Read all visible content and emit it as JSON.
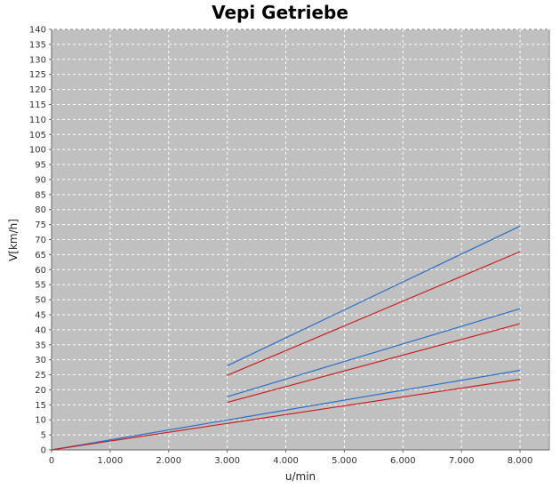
{
  "chart_data": {
    "type": "line",
    "title": "Vepi Getriebe",
    "xlabel": "u/min",
    "ylabel": "V[km/h]",
    "xlim": [
      0,
      8500
    ],
    "ylim": [
      0,
      140
    ],
    "x_ticks": [
      0,
      1000,
      2000,
      3000,
      4000,
      5000,
      6000,
      7000,
      8000
    ],
    "x_tick_labels": [
      "0",
      "1.000",
      "2.000",
      "3.000",
      "4.000",
      "5.000",
      "6.000",
      "7.000",
      "8.000"
    ],
    "y_ticks": [
      0,
      5,
      10,
      15,
      20,
      25,
      30,
      35,
      40,
      45,
      50,
      55,
      60,
      65,
      70,
      75,
      80,
      85,
      90,
      95,
      100,
      105,
      110,
      115,
      120,
      125,
      130,
      135,
      140
    ],
    "grid": true,
    "background": "#c0c0c0",
    "series": [
      {
        "color": "#2a6fc9",
        "points": [
          [
            0,
            0
          ],
          [
            8000,
            26.5
          ]
        ]
      },
      {
        "color": "#cc1f1f",
        "points": [
          [
            0,
            0
          ],
          [
            8000,
            23.5
          ]
        ]
      },
      {
        "color": "#2a6fc9",
        "points": [
          [
            3000,
            17.7
          ],
          [
            8000,
            47
          ]
        ]
      },
      {
        "color": "#cc1f1f",
        "points": [
          [
            3000,
            15.8
          ],
          [
            8000,
            42
          ]
        ]
      },
      {
        "color": "#2a6fc9",
        "points": [
          [
            3000,
            28
          ],
          [
            8000,
            74.5
          ]
        ]
      },
      {
        "color": "#cc1f1f",
        "points": [
          [
            3000,
            24.8
          ],
          [
            8000,
            66
          ]
        ]
      }
    ]
  }
}
